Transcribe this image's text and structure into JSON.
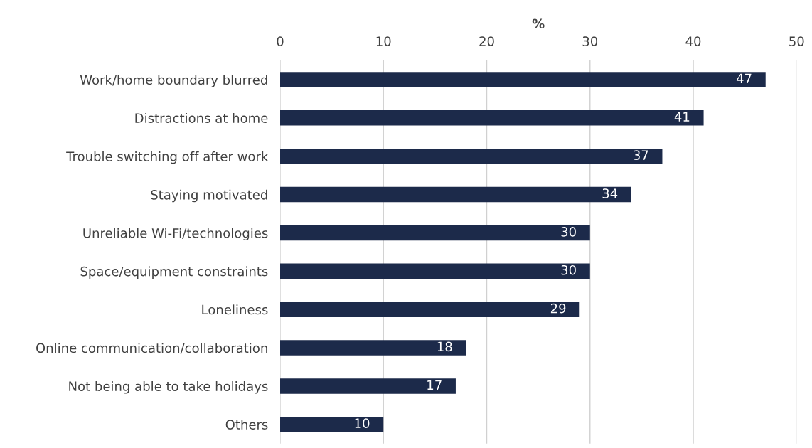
{
  "chart_data": {
    "type": "bar",
    "orientation": "horizontal",
    "xlabel": "%",
    "categories": [
      "Work/home boundary blurred",
      "Distractions at home",
      "Trouble switching off after work",
      "Staying motivated",
      "Unreliable Wi-Fi/technologies",
      "Space/equipment constraints",
      "Loneliness",
      "Online communication/collaboration",
      "Not being able to take holidays",
      "Others"
    ],
    "values": [
      47,
      41,
      37,
      34,
      30,
      30,
      29,
      18,
      17,
      10
    ],
    "color": "#1c2a4a",
    "xlim": [
      0,
      50
    ],
    "xticks": [
      0,
      10,
      20,
      30,
      40,
      50
    ],
    "grid": "x",
    "data_labels": true,
    "legend": false
  }
}
